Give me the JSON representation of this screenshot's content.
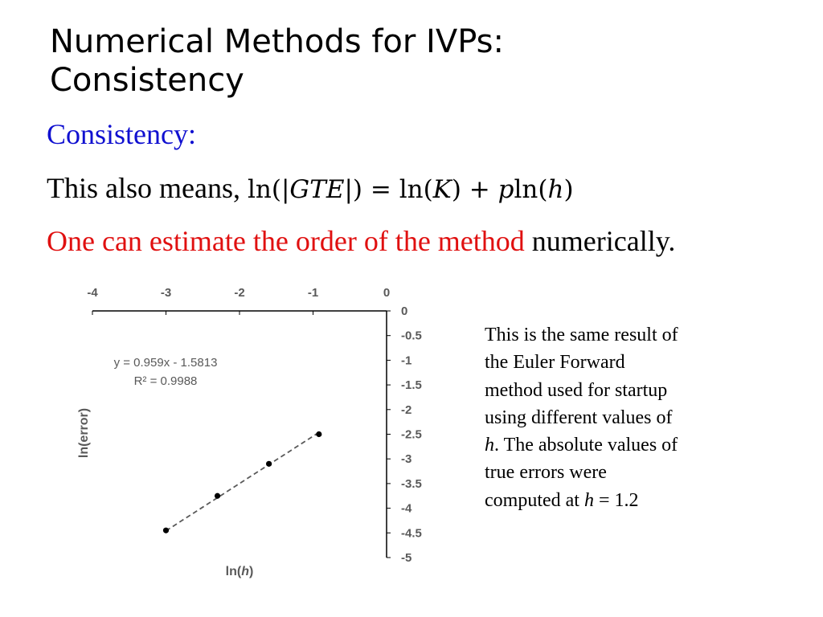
{
  "slide": {
    "title_line1": "Numerical Methods for IVPs:",
    "title_line2": "Consistency",
    "heading": "Consistency:",
    "heading_color": "#1010d0",
    "eq_prefix": "This also means, ",
    "eq_ln1": "ln(|",
    "eq_gte": "GTE",
    "eq_mid": "|) = ln(",
    "eq_k": "K",
    "eq_plus": ") + ",
    "eq_p": "p",
    "eq_ln2": "ln(",
    "eq_h": "h",
    "eq_close": ")",
    "estimate_red": "One can estimate the order of the method",
    "estimate_rest": " numerically.",
    "estimate_color": "#e01010"
  },
  "note": {
    "line1": "This is the same result of",
    "line2": "the Euler Forward",
    "line3": "method used for startup",
    "line4": "using different values of",
    "line5_h": "h",
    "line5_rest": ".  The absolute values of",
    "line6": "true errors were",
    "line7_pre": "computed at ",
    "line7_h": "h",
    "line7_post": " = 1.2"
  },
  "chart_data": {
    "type": "scatter",
    "xlabel_prefix": "ln(",
    "xlabel_var": "h",
    "xlabel_suffix": ")",
    "ylabel": "ln(error)",
    "xlim": [
      -4,
      0
    ],
    "ylim": [
      -5,
      0
    ],
    "x_ticks": [
      "-4",
      "-3",
      "-2",
      "-1",
      "0"
    ],
    "y_ticks": [
      "0",
      "-0.5",
      "-1",
      "-1.5",
      "-2",
      "-2.5",
      "-3",
      "-3.5",
      "-4",
      "-4.5",
      "-5"
    ],
    "points": [
      {
        "x": -3.0,
        "y": -4.45
      },
      {
        "x": -2.3,
        "y": -3.75
      },
      {
        "x": -1.6,
        "y": -3.1
      },
      {
        "x": -0.92,
        "y": -2.5
      }
    ],
    "trendline": {
      "slope": 0.959,
      "intercept": -1.5813
    },
    "trendline_label": "y = 0.959x - 1.5813",
    "r2_label": "R² = 0.9988",
    "grid": false,
    "marker_color": "#000000",
    "trend_color": "#595959"
  }
}
